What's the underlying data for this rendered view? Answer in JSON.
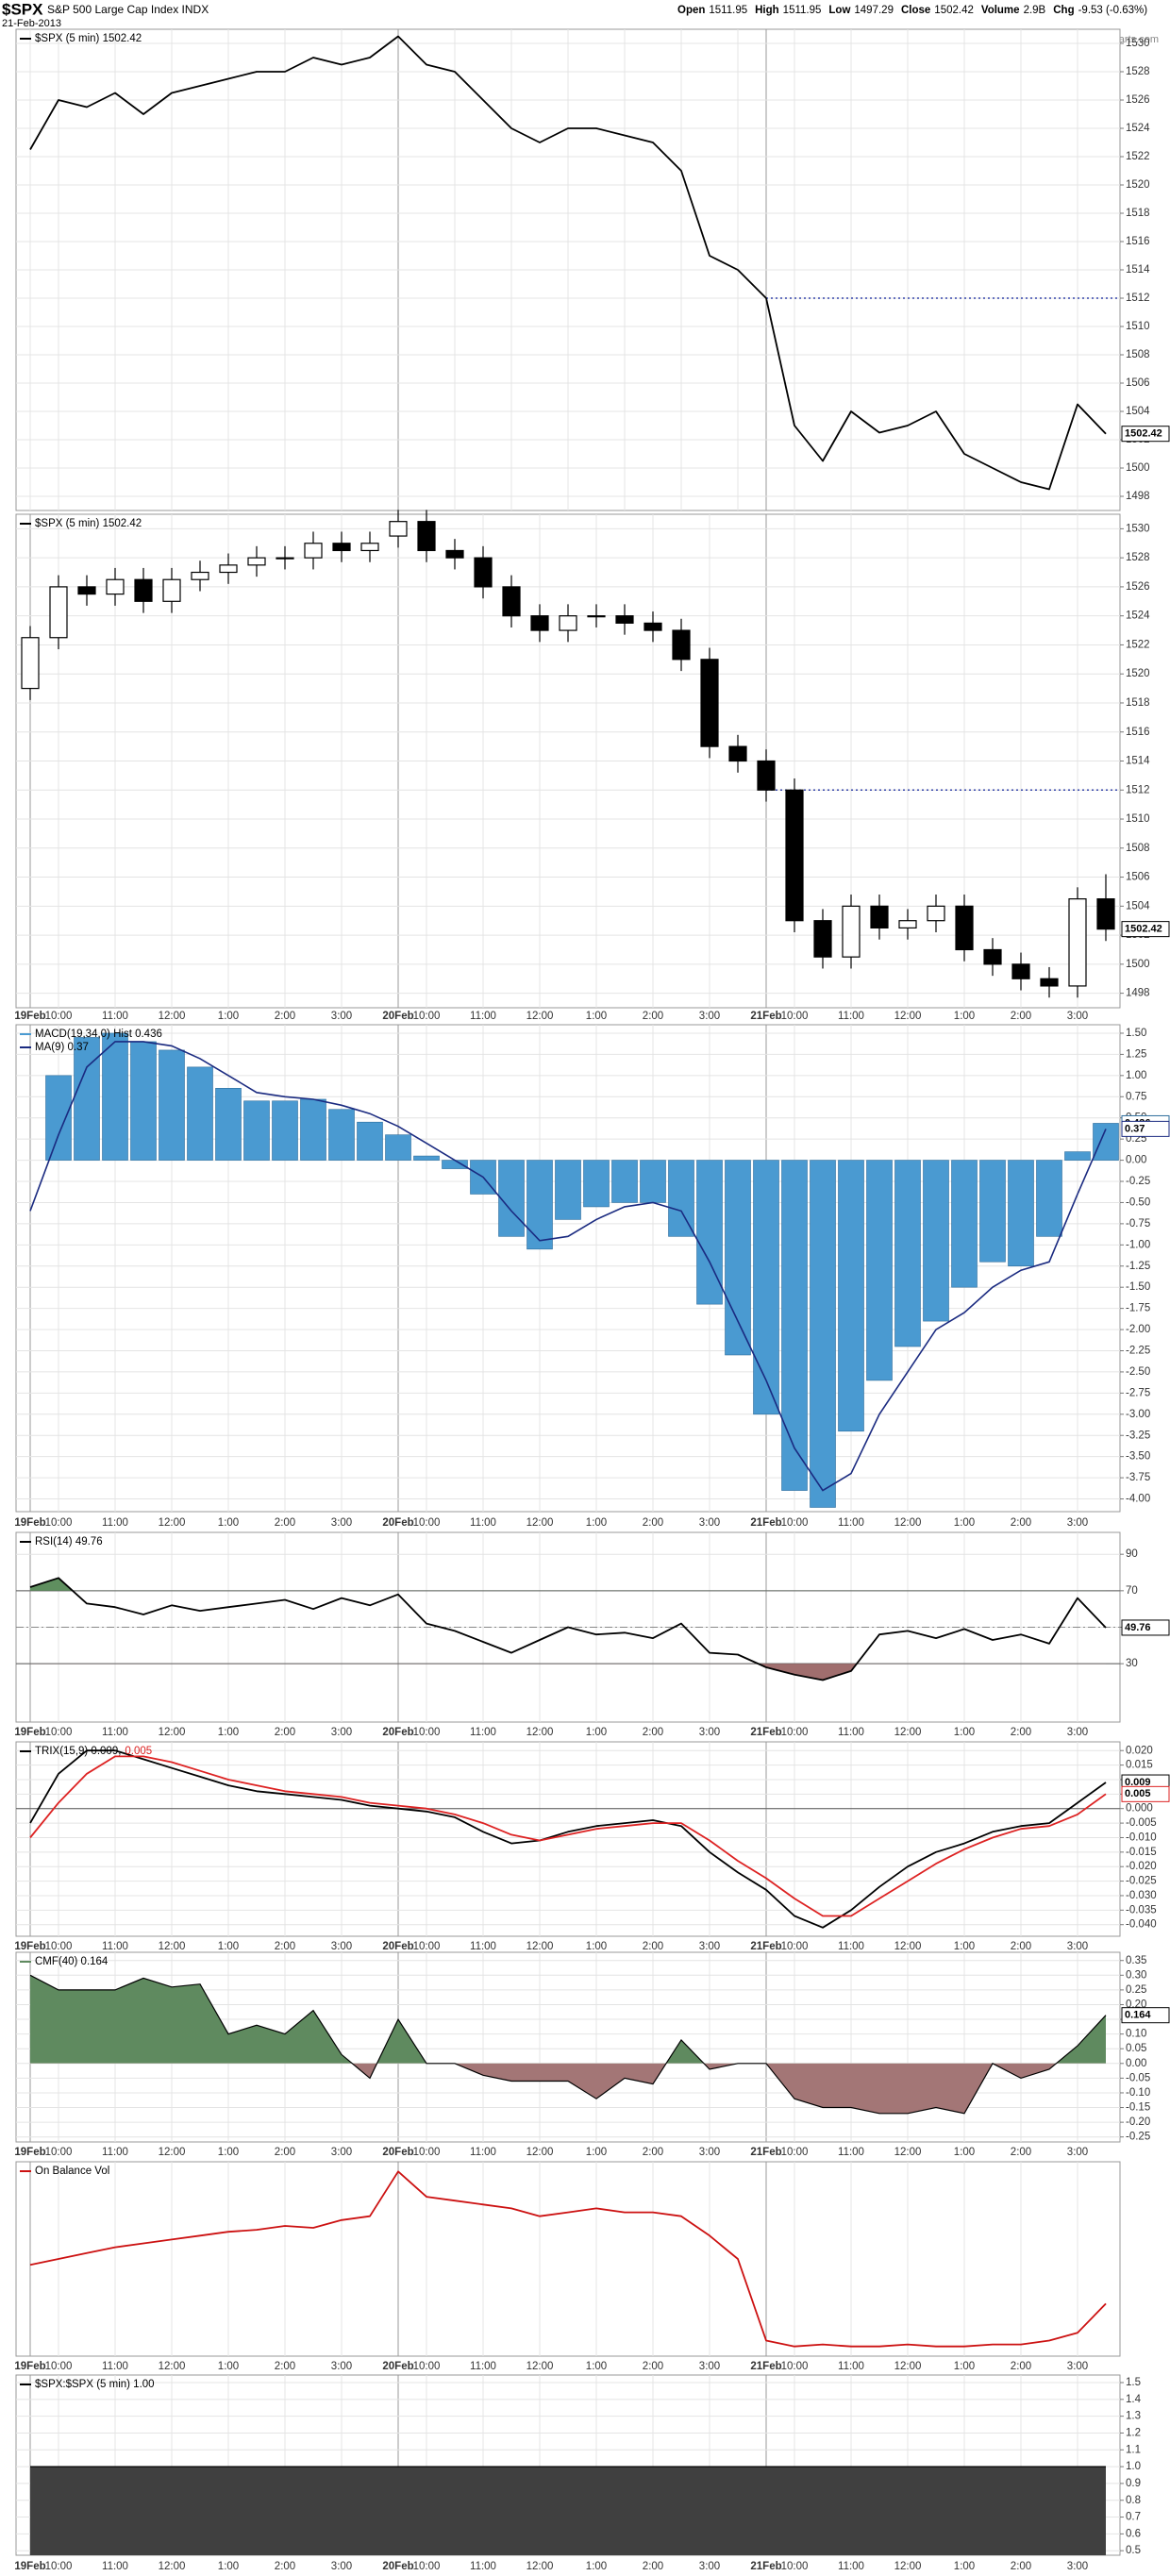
{
  "header": {
    "symbol": "$SPX",
    "name": "S&P 500 Large Cap Index INDX",
    "date": "21-Feb-2013",
    "quote": [
      {
        "label": "Open",
        "value": "1511.95"
      },
      {
        "label": "High",
        "value": "1511.95"
      },
      {
        "label": "Low",
        "value": "1497.29"
      },
      {
        "label": "Close",
        "value": "1502.42"
      },
      {
        "label": "Volume",
        "value": "2.9B"
      },
      {
        "label": "Chg",
        "value": "-9.53 (-0.63%)"
      }
    ],
    "credit": "© StockCharts.com"
  },
  "chart_data": [
    {
      "type": "line",
      "grid": true,
      "reference_line": 1512,
      "ylim": [
        1497,
        1531
      ],
      "yticks": [
        1498,
        1500,
        1502,
        1504,
        1506,
        1508,
        1510,
        1512,
        1514,
        1516,
        1518,
        1520,
        1522,
        1524,
        1526,
        1528,
        1530
      ],
      "series": [
        {
          "name": "$SPX (5 min) 1502.42",
          "color": "#000000",
          "show_last": true,
          "values": [
            1522.5,
            1526,
            1525.5,
            1526.5,
            1525,
            1526.5,
            1527,
            1527.5,
            1528,
            1528,
            1529,
            1528.5,
            1529,
            1530.5,
            1528.5,
            1528,
            1526,
            1524,
            1523,
            1524,
            1524,
            1523.5,
            1523,
            1521,
            1515,
            1514,
            1512,
            1503,
            1500.5,
            1504,
            1502.5,
            1503,
            1504,
            1501,
            1500,
            1499,
            1498.5,
            1504.5,
            1502.42
          ]
        }
      ]
    },
    {
      "type": "candlestick",
      "grid": true,
      "reference_line": 1512,
      "name": "$SPX (5 min) 1502.42",
      "show_last": true,
      "ylim": [
        1497,
        1531
      ],
      "yticks": [
        1498,
        1500,
        1502,
        1504,
        1506,
        1508,
        1510,
        1512,
        1514,
        1516,
        1518,
        1520,
        1522,
        1524,
        1526,
        1528,
        1530
      ],
      "categories": [
        "19Feb",
        "10:00",
        null,
        "11:00",
        null,
        "12:00",
        null,
        "1:00",
        null,
        "2:00",
        null,
        "3:00",
        null,
        "20Feb",
        "10:00",
        null,
        "11:00",
        null,
        "12:00",
        null,
        "1:00",
        null,
        "2:00",
        null,
        "3:00",
        null,
        "21Feb",
        "10:00",
        null,
        "11:00",
        null,
        "12:00",
        null,
        "1:00",
        null,
        "2:00",
        null,
        "3:00",
        null
      ],
      "open": [
        1519,
        1522.5,
        1526,
        1525.5,
        1526.5,
        1525,
        1526.5,
        1527,
        1527.5,
        1528,
        1528,
        1529,
        1528.5,
        1529.5,
        1530.5,
        1528.5,
        1528,
        1526,
        1524,
        1523,
        1524,
        1524,
        1523.5,
        1523,
        1521,
        1515,
        1514,
        1512,
        1503,
        1500.5,
        1504,
        1502.5,
        1503,
        1504,
        1501,
        1500,
        1499,
        1498.5,
        1504.5
      ],
      "high": [
        1523.3,
        1526.8,
        1526.8,
        1527.3,
        1527.3,
        1527.3,
        1527.8,
        1528.3,
        1528.8,
        1528.8,
        1529.8,
        1529.8,
        1529.8,
        1531.3,
        1531.3,
        1529.3,
        1528.8,
        1526.8,
        1524.8,
        1524.8,
        1524.8,
        1524.8,
        1524.3,
        1523.8,
        1521.8,
        1515.8,
        1514.8,
        1512.8,
        1503.8,
        1504.8,
        1504.8,
        1503.8,
        1504.8,
        1504.8,
        1501.8,
        1500.8,
        1499.8,
        1505.3,
        1506.2
      ],
      "low": [
        1518.2,
        1521.7,
        1524.7,
        1524.7,
        1524.2,
        1524.2,
        1525.7,
        1526.2,
        1526.7,
        1527.2,
        1527.2,
        1527.7,
        1527.7,
        1528.7,
        1527.7,
        1527.2,
        1525.2,
        1523.2,
        1522.2,
        1522.2,
        1523.2,
        1522.7,
        1522.2,
        1520.2,
        1514.2,
        1513.2,
        1511.2,
        1502.2,
        1499.7,
        1499.7,
        1501.7,
        1501.7,
        1502.2,
        1500.2,
        1499.2,
        1498.2,
        1497.7,
        1497.7,
        1501.6
      ],
      "close": [
        1522.5,
        1526,
        1525.5,
        1526.5,
        1525,
        1526.5,
        1527,
        1527.5,
        1528,
        1528,
        1529,
        1528.5,
        1529,
        1530.5,
        1528.5,
        1528,
        1526,
        1524,
        1523,
        1524,
        1524,
        1523.5,
        1523,
        1521,
        1515,
        1514,
        1512,
        1503,
        1500.5,
        1504,
        1502.5,
        1503,
        1504,
        1501,
        1500,
        1499,
        1498.5,
        1504.5,
        1502.42
      ]
    },
    {
      "type": "combo",
      "grid": true,
      "ylim": [
        -4.15,
        1.6
      ],
      "yticks": [
        {
          "value": 1.5,
          "label": "1.50"
        },
        1.25,
        {
          "value": 1,
          "label": "1.00"
        },
        0.75,
        {
          "value": 0.5,
          "label": "0.50"
        },
        0.25,
        {
          "value": 0,
          "label": "0.00"
        },
        -0.25,
        {
          "value": -0.5,
          "label": "-0.50"
        },
        -0.75,
        {
          "value": -1,
          "label": "-1.00"
        },
        -1.25,
        {
          "value": -1.5,
          "label": "-1.50"
        },
        -1.75,
        {
          "value": -2,
          "label": "-2.00"
        },
        -2.25,
        {
          "value": -2.5,
          "label": "-2.50"
        },
        -2.75,
        {
          "value": -3,
          "label": "-3.00"
        },
        -3.25,
        {
          "value": -3.5,
          "label": "-3.50"
        },
        -3.75,
        {
          "value": -4,
          "label": "-4.00"
        }
      ],
      "categories": [
        "19Feb",
        "10:00",
        null,
        "11:00",
        null,
        "12:00",
        null,
        "1:00",
        null,
        "2:00",
        null,
        "3:00",
        null,
        "20Feb",
        "10:00",
        null,
        "11:00",
        null,
        "12:00",
        null,
        "1:00",
        null,
        "2:00",
        null,
        "3:00",
        null,
        "21Feb",
        "10:00",
        null,
        "11:00",
        null,
        "12:00",
        null,
        "1:00",
        null,
        "2:00",
        null,
        "3:00",
        null
      ],
      "series": [
        {
          "name": "MACD(19,34,0) Hist 0.436",
          "style": "bar",
          "color": "#4a9ad1",
          "show_last": true,
          "values": [
            0,
            1,
            1.45,
            1.5,
            1.4,
            1.3,
            1.1,
            0.85,
            0.7,
            0.7,
            0.72,
            0.6,
            0.45,
            0.3,
            0.05,
            -0.1,
            -0.4,
            -0.9,
            -1.05,
            -0.7,
            -0.55,
            -0.5,
            -0.5,
            -0.9,
            -1.7,
            -2.3,
            -3,
            -3.9,
            -4.1,
            -3.2,
            -2.6,
            -2.2,
            -1.9,
            -1.5,
            -1.2,
            -1.25,
            -0.9,
            0.1,
            0.436
          ]
        },
        {
          "name": "MA(9) 0.37",
          "style": "line",
          "color": "#1a2a80",
          "show_last": true,
          "values": [
            -0.6,
            0.3,
            1.1,
            1.4,
            1.4,
            1.35,
            1.2,
            1,
            0.8,
            0.75,
            0.72,
            0.65,
            0.55,
            0.4,
            0.2,
            0,
            -0.2,
            -0.6,
            -0.95,
            -0.9,
            -0.7,
            -0.55,
            -0.5,
            -0.6,
            -1.2,
            -1.9,
            -2.6,
            -3.4,
            -3.9,
            -3.7,
            -3,
            -2.5,
            -2,
            -1.8,
            -1.5,
            -1.3,
            -1.2,
            -0.4,
            0.37
          ]
        }
      ]
    },
    {
      "type": "line",
      "grid": true,
      "ylim": [
        -2,
        102
      ],
      "yticks": [
        90,
        70,
        50,
        30
      ],
      "overbought": 70,
      "oversold": 30,
      "midline": 50,
      "overbought_color": "#5f8f5f",
      "oversold_color": "#a06e6e",
      "categories": [
        "19Feb",
        "10:00",
        null,
        "11:00",
        null,
        "12:00",
        null,
        "1:00",
        null,
        "2:00",
        null,
        "3:00",
        null,
        "20Feb",
        "10:00",
        null,
        "11:00",
        null,
        "12:00",
        null,
        "1:00",
        null,
        "2:00",
        null,
        "3:00",
        null,
        "21Feb",
        "10:00",
        null,
        "11:00",
        null,
        "12:00",
        null,
        "1:00",
        null,
        "2:00",
        null,
        "3:00",
        null
      ],
      "series": [
        {
          "name": "RSI(14) 49.76",
          "color": "#000000",
          "show_last": true,
          "values": [
            72,
            77,
            63,
            61,
            57,
            62,
            59,
            61,
            63,
            65,
            60,
            66,
            62,
            68,
            52,
            48,
            42,
            36,
            43,
            50,
            46,
            47,
            44,
            52,
            36,
            35,
            28,
            24,
            21,
            26,
            46,
            48,
            44,
            49,
            43,
            46,
            41,
            66,
            49.76
          ]
        }
      ]
    },
    {
      "type": "line",
      "grid": true,
      "zero_line": true,
      "legend_layout": "inline",
      "ylim": [
        -0.044,
        0.023
      ],
      "yticks": [
        {
          "value": 0.02,
          "label": "0.020"
        },
        0.015,
        {
          "value": 0.01,
          "label": "0.010"
        },
        0.005,
        {
          "value": 0,
          "label": "0.000"
        },
        -0.005,
        {
          "value": -0.01,
          "label": "-0.010"
        },
        -0.015,
        {
          "value": -0.02,
          "label": "-0.020"
        },
        -0.025,
        {
          "value": -0.03,
          "label": "-0.030"
        },
        -0.035,
        {
          "value": -0.04,
          "label": "-0.040"
        }
      ],
      "categories": [
        "19Feb",
        "10:00",
        null,
        "11:00",
        null,
        "12:00",
        null,
        "1:00",
        null,
        "2:00",
        null,
        "3:00",
        null,
        "20Feb",
        "10:00",
        null,
        "11:00",
        null,
        "12:00",
        null,
        "1:00",
        null,
        "2:00",
        null,
        "3:00",
        null,
        "21Feb",
        "10:00",
        null,
        "11:00",
        null,
        "12:00",
        null,
        "1:00",
        null,
        "2:00",
        null,
        "3:00",
        null
      ],
      "series": [
        {
          "name": "TRIX(15,9) 0.009,",
          "color": "#000000",
          "show_last": true,
          "values": [
            -0.005,
            0.012,
            0.02,
            0.02,
            0.017,
            0.014,
            0.011,
            0.008,
            0.006,
            0.005,
            0.004,
            0.003,
            0.001,
            0,
            -0.001,
            -0.003,
            -0.008,
            -0.012,
            -0.011,
            -0.008,
            -0.006,
            -0.005,
            -0.004,
            -0.006,
            -0.015,
            -0.022,
            -0.028,
            -0.037,
            -0.041,
            -0.035,
            -0.027,
            -0.02,
            -0.015,
            -0.012,
            -0.008,
            -0.006,
            -0.005,
            0.002,
            0.009
          ]
        },
        {
          "name": "0.005",
          "color": "#dd2222",
          "show_last": true,
          "values": [
            -0.01,
            0.002,
            0.012,
            0.018,
            0.018,
            0.016,
            0.013,
            0.01,
            0.008,
            0.006,
            0.005,
            0.004,
            0.002,
            0.001,
            0,
            -0.002,
            -0.005,
            -0.009,
            -0.011,
            -0.009,
            -0.007,
            -0.006,
            -0.005,
            -0.005,
            -0.011,
            -0.018,
            -0.024,
            -0.031,
            -0.037,
            -0.037,
            -0.031,
            -0.025,
            -0.019,
            -0.014,
            -0.01,
            -0.007,
            -0.006,
            -0.002,
            0.005
          ]
        }
      ]
    },
    {
      "type": "area",
      "grid": true,
      "fill": "zero",
      "ylim": [
        -0.267,
        0.378
      ],
      "yticks": [
        0.35,
        {
          "value": 0.3,
          "label": "0.30"
        },
        0.25,
        {
          "value": 0.2,
          "label": "0.20"
        },
        0.15,
        {
          "value": 0.1,
          "label": "0.10"
        },
        0.05,
        {
          "value": 0,
          "label": "0.00"
        },
        -0.05,
        {
          "value": -0.1,
          "label": "-0.10"
        },
        -0.15,
        {
          "value": -0.2,
          "label": "-0.20"
        },
        -0.25
      ],
      "categories": [
        "19Feb",
        "10:00",
        null,
        "11:00",
        null,
        "12:00",
        null,
        "1:00",
        null,
        "2:00",
        null,
        "3:00",
        null,
        "20Feb",
        "10:00",
        null,
        "11:00",
        null,
        "12:00",
        null,
        "1:00",
        null,
        "2:00",
        null,
        "3:00",
        null,
        "21Feb",
        "10:00",
        null,
        "11:00",
        null,
        "12:00",
        null,
        "1:00",
        null,
        "2:00",
        null,
        "3:00",
        null
      ],
      "series": [
        {
          "name": "CMF(40) 0.164",
          "color": "#5f8a5f",
          "negative_color": "#a37676",
          "show_last": true,
          "values": [
            0.3,
            0.25,
            0.25,
            0.25,
            0.29,
            0.26,
            0.27,
            0.1,
            0.13,
            0.1,
            0.18,
            0.03,
            -0.05,
            0.15,
            0,
            0,
            -0.04,
            -0.06,
            -0.06,
            -0.06,
            -0.12,
            -0.05,
            -0.07,
            0.08,
            -0.02,
            0,
            0,
            -0.12,
            -0.15,
            -0.15,
            -0.17,
            -0.17,
            -0.15,
            -0.17,
            0,
            -0.05,
            -0.02,
            0.06,
            0.164
          ]
        }
      ]
    },
    {
      "type": "line",
      "grid": true,
      "ylim": [
        0,
        100
      ],
      "categories": [
        "19Feb",
        "10:00",
        null,
        "11:00",
        null,
        "12:00",
        null,
        "1:00",
        null,
        "2:00",
        null,
        "3:00",
        null,
        "20Feb",
        "10:00",
        null,
        "11:00",
        null,
        "12:00",
        null,
        "1:00",
        null,
        "2:00",
        null,
        "3:00",
        null,
        "21Feb",
        "10:00",
        null,
        "11:00",
        null,
        "12:00",
        null,
        "1:00",
        null,
        "2:00",
        null,
        "3:00",
        null
      ],
      "series": [
        {
          "name": "On Balance Vol",
          "color": "#cc1111",
          "values": [
            47,
            50,
            53,
            56,
            58,
            60,
            62,
            64,
            65,
            67,
            66,
            70,
            72,
            95,
            82,
            80,
            78,
            76,
            72,
            74,
            76,
            74,
            74,
            72,
            62,
            50,
            8,
            5,
            6,
            5,
            5,
            6,
            5,
            5,
            6,
            6,
            8,
            12,
            27
          ]
        }
      ]
    },
    {
      "type": "area",
      "grid": true,
      "fill": "bottom",
      "ylim": [
        0.473,
        1.545
      ],
      "yticks": [
        1.5,
        1.4,
        1.3,
        1.2,
        1.1,
        {
          "value": 1,
          "label": "1.0"
        },
        0.9,
        0.8,
        0.7,
        0.6,
        0.5
      ],
      "categories": [
        "19Feb",
        "10:00",
        null,
        "11:00",
        null,
        "12:00",
        null,
        "1:00",
        null,
        "2:00",
        null,
        "3:00",
        null,
        "20Feb",
        "10:00",
        null,
        "11:00",
        null,
        "12:00",
        null,
        "1:00",
        null,
        "2:00",
        null,
        "3:00",
        null,
        "21Feb",
        "10:00",
        null,
        "11:00",
        null,
        "12:00",
        null,
        "1:00",
        null,
        "2:00",
        null,
        "3:00",
        null
      ],
      "series": [
        {
          "name": "$SPX:$SPX (5 min) 1.00",
          "color": "#404040",
          "values": [
            1,
            1,
            1,
            1,
            1,
            1,
            1,
            1,
            1,
            1,
            1,
            1,
            1,
            1,
            1,
            1,
            1,
            1,
            1,
            1,
            1,
            1,
            1,
            1,
            1,
            1,
            1,
            1,
            1,
            1,
            1,
            1,
            1,
            1,
            1,
            1,
            1,
            1,
            1
          ]
        }
      ]
    }
  ]
}
